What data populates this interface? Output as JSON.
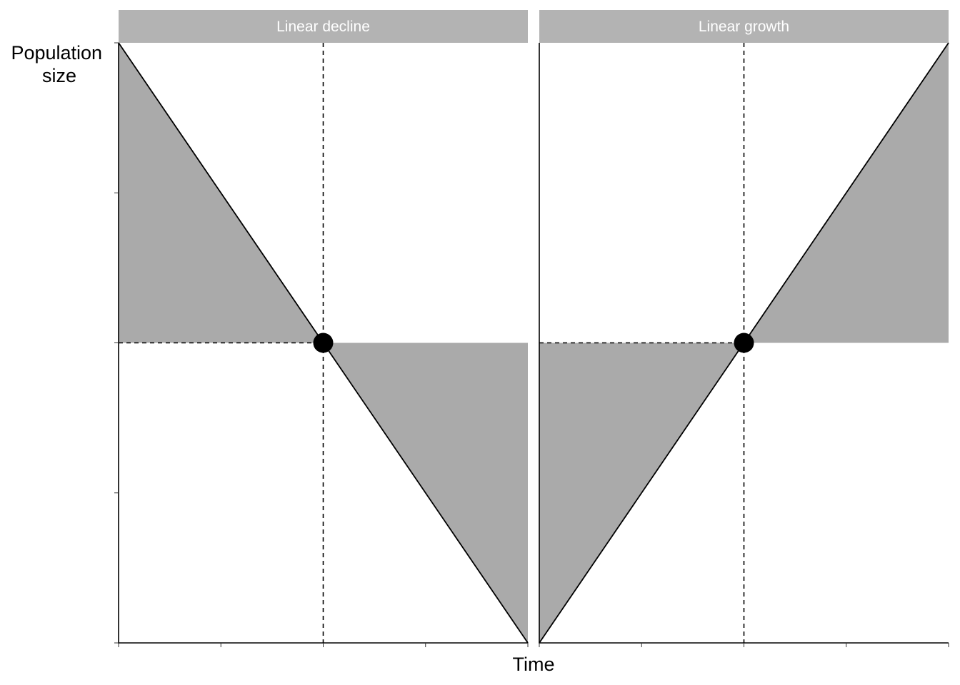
{
  "chart_data": {
    "type": "area",
    "xlabel": "Time",
    "ylabel": [
      "Population",
      "size"
    ],
    "xlim": [
      0,
      1
    ],
    "ylim": [
      0,
      1
    ],
    "x_ticks": [
      0,
      0.25,
      0.5,
      0.75,
      1
    ],
    "y_ticks": [
      0,
      0.25,
      0.5,
      0.75,
      1
    ],
    "tick_labels_shown": false,
    "grid": false,
    "legend": "none",
    "colors": {
      "strip": "#b3b3b3",
      "fill": "#aaaaaa",
      "line": "#000000",
      "point": "#000000"
    },
    "panels": [
      {
        "title": "Linear decline",
        "line": {
          "x": [
            0,
            1
          ],
          "y": [
            1,
            0
          ]
        },
        "point": {
          "x": 0.5,
          "y": 0.5
        },
        "shaded_regions": [
          {
            "x": [
              0,
              0.5,
              0
            ],
            "y": [
              1,
              0.5,
              0.5
            ]
          },
          {
            "x": [
              0.5,
              1,
              1
            ],
            "y": [
              0.5,
              0.5,
              0
            ]
          }
        ],
        "reference_lines": {
          "vertical_x": 0.5,
          "horizontal_y": 0.5
        }
      },
      {
        "title": "Linear growth",
        "line": {
          "x": [
            0,
            1
          ],
          "y": [
            0,
            1
          ]
        },
        "point": {
          "x": 0.5,
          "y": 0.5
        },
        "shaded_regions": [
          {
            "x": [
              0,
              0.5,
              0
            ],
            "y": [
              0,
              0.5,
              0.5
            ]
          },
          {
            "x": [
              0.5,
              1,
              1
            ],
            "y": [
              0.5,
              1,
              0.5
            ]
          }
        ],
        "reference_lines": {
          "vertical_x": 0.5,
          "horizontal_y": 0.5
        }
      }
    ]
  }
}
